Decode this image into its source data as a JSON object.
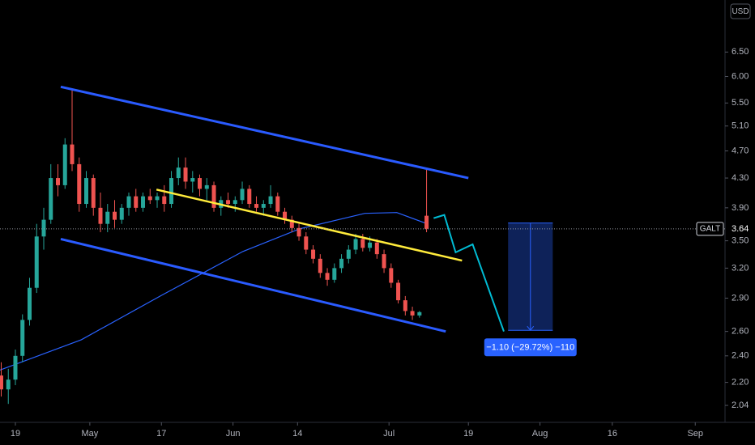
{
  "chart_data": {
    "type": "candlestick",
    "currency": "USD",
    "log_scale": true,
    "up_color": "#26a69a",
    "down_color": "#ef5350",
    "xlim": [
      -2.17,
      100.1
    ],
    "ylim": [
      1.94,
      7.71
    ],
    "xticks": [
      {
        "value": 0,
        "label": "19"
      },
      {
        "value": 10.5,
        "label": "May"
      },
      {
        "value": 20.6,
        "label": "17"
      },
      {
        "value": 30.7,
        "label": "Jun"
      },
      {
        "value": 39.8,
        "label": "14"
      },
      {
        "value": 52.7,
        "label": "Jul"
      },
      {
        "value": 63.9,
        "label": "19"
      },
      {
        "value": 74,
        "label": "Aug"
      },
      {
        "value": 84.2,
        "label": "16"
      },
      {
        "value": 95.9,
        "label": "Sep"
      }
    ],
    "yticks": [
      {
        "value": 6.5,
        "label": "6.50"
      },
      {
        "value": 6.0,
        "label": "6.00"
      },
      {
        "value": 5.5,
        "label": "5.50"
      },
      {
        "value": 5.1,
        "label": "5.10"
      },
      {
        "value": 4.7,
        "label": "4.70"
      },
      {
        "value": 4.3,
        "label": "4.30"
      },
      {
        "value": 3.9,
        "label": "3.90"
      },
      {
        "value": 3.5,
        "label": "3.50"
      },
      {
        "value": 3.2,
        "label": "3.20"
      },
      {
        "value": 2.9,
        "label": "2.90"
      },
      {
        "value": 2.6,
        "label": "2.60"
      },
      {
        "value": 2.4,
        "label": "2.40"
      },
      {
        "value": 2.2,
        "label": "2.20"
      },
      {
        "value": 2.04,
        "label": "2.04"
      }
    ],
    "x": [
      -2,
      -1,
      0,
      1,
      2,
      3,
      4,
      5,
      6,
      7,
      8,
      9,
      10,
      11,
      12,
      13,
      14,
      15,
      16,
      17,
      18,
      19,
      20,
      21,
      22,
      23,
      24,
      25,
      26,
      27,
      28,
      29,
      30,
      31,
      32,
      33,
      34,
      35,
      36,
      37,
      38,
      39,
      40,
      41,
      42,
      43,
      44,
      45,
      46,
      47,
      48,
      49,
      50,
      51,
      52,
      53,
      54,
      55,
      56,
      57,
      58
    ],
    "ohlc": [
      [
        2.25,
        2.35,
        2.1,
        2.15
      ],
      [
        2.15,
        2.3,
        2.05,
        2.22
      ],
      [
        2.22,
        2.45,
        2.18,
        2.4
      ],
      [
        2.4,
        2.75,
        2.35,
        2.7
      ],
      [
        2.7,
        3.1,
        2.65,
        3.0
      ],
      [
        3.0,
        3.7,
        2.95,
        3.55
      ],
      [
        3.55,
        3.9,
        3.4,
        3.75
      ],
      [
        3.75,
        4.5,
        3.7,
        4.3
      ],
      [
        4.3,
        4.5,
        4.05,
        4.2
      ],
      [
        4.2,
        4.9,
        4.15,
        4.8
      ],
      [
        4.8,
        5.75,
        4.4,
        4.5
      ],
      [
        4.5,
        4.6,
        3.85,
        3.95
      ],
      [
        3.95,
        4.4,
        3.9,
        4.3
      ],
      [
        4.3,
        4.35,
        3.8,
        3.9
      ],
      [
        3.9,
        4.1,
        3.6,
        3.7
      ],
      [
        3.7,
        3.95,
        3.6,
        3.85
      ],
      [
        3.85,
        4.0,
        3.65,
        3.75
      ],
      [
        3.75,
        3.95,
        3.7,
        3.9
      ],
      [
        3.9,
        4.1,
        3.8,
        4.05
      ],
      [
        4.05,
        4.15,
        3.85,
        3.9
      ],
      [
        3.9,
        4.1,
        3.85,
        4.05
      ],
      [
        4.05,
        4.15,
        3.95,
        4.0
      ],
      [
        4.0,
        4.1,
        3.9,
        4.05
      ],
      [
        4.05,
        4.2,
        3.85,
        3.95
      ],
      [
        3.95,
        4.4,
        3.9,
        4.3
      ],
      [
        4.3,
        4.6,
        4.2,
        4.45
      ],
      [
        4.45,
        4.6,
        4.15,
        4.25
      ],
      [
        4.25,
        4.4,
        4.1,
        4.3
      ],
      [
        4.3,
        4.35,
        4.05,
        4.15
      ],
      [
        4.15,
        4.3,
        4.0,
        4.2
      ],
      [
        4.2,
        4.25,
        3.85,
        3.9
      ],
      [
        3.9,
        4.05,
        3.8,
        4.0
      ],
      [
        4.0,
        4.1,
        3.9,
        3.95
      ],
      [
        3.95,
        4.05,
        3.85,
        4.0
      ],
      [
        4.0,
        4.25,
        3.95,
        4.15
      ],
      [
        4.15,
        4.2,
        3.9,
        3.95
      ],
      [
        3.95,
        4.05,
        3.85,
        3.9
      ],
      [
        3.9,
        4.0,
        3.8,
        3.95
      ],
      [
        3.95,
        4.2,
        3.9,
        4.05
      ],
      [
        4.05,
        4.1,
        3.8,
        3.85
      ],
      [
        3.85,
        3.9,
        3.7,
        3.75
      ],
      [
        3.75,
        3.8,
        3.6,
        3.65
      ],
      [
        3.65,
        3.7,
        3.5,
        3.55
      ],
      [
        3.55,
        3.6,
        3.35,
        3.4
      ],
      [
        3.4,
        3.45,
        3.25,
        3.3
      ],
      [
        3.3,
        3.35,
        3.1,
        3.15
      ],
      [
        3.15,
        3.2,
        3.02,
        3.08
      ],
      [
        3.08,
        3.25,
        3.05,
        3.2
      ],
      [
        3.2,
        3.35,
        3.15,
        3.3
      ],
      [
        3.3,
        3.45,
        3.25,
        3.4
      ],
      [
        3.4,
        3.58,
        3.35,
        3.52
      ],
      [
        3.52,
        3.58,
        3.38,
        3.42
      ],
      [
        3.42,
        3.55,
        3.38,
        3.48
      ],
      [
        3.48,
        3.52,
        3.3,
        3.35
      ],
      [
        3.35,
        3.4,
        3.15,
        3.2
      ],
      [
        3.2,
        3.25,
        3.0,
        3.05
      ],
      [
        3.05,
        3.08,
        2.85,
        2.88
      ],
      [
        2.88,
        2.92,
        2.74,
        2.78
      ],
      [
        2.78,
        2.82,
        2.7,
        2.74
      ],
      [
        2.74,
        2.78,
        2.72,
        2.77
      ],
      [
        3.8,
        4.42,
        3.6,
        3.64
      ]
    ],
    "moving_average": {
      "color": "#2962ff",
      "x": [
        -2.2,
        9.3,
        20.7,
        32.1,
        40.1,
        49.3,
        53.8,
        57.8
      ],
      "values": [
        2.29,
        2.53,
        2.93,
        3.38,
        3.64,
        3.83,
        3.84,
        3.71
      ]
    },
    "drawings": [
      {
        "color": "#2a5bff",
        "width": 3,
        "x": [
          6.4,
          63.9
        ],
        "values": [
          5.8,
          4.3
        ]
      },
      {
        "color": "#2a5bff",
        "width": 3,
        "x": [
          6.4,
          60.7
        ],
        "values": [
          3.52,
          2.6
        ]
      },
      {
        "color": "#ffeb3b",
        "width": 2.5,
        "x": [
          19.9,
          63
        ],
        "values": [
          4.14,
          3.28
        ]
      },
      {
        "color": "#00bcd4",
        "width": 2,
        "x": [
          59,
          60.5,
          62.1,
          64.5,
          68.9
        ],
        "values": [
          3.77,
          3.81,
          3.37,
          3.46,
          2.6
        ]
      }
    ],
    "measure": {
      "color": "#2962ff",
      "x": [
        69.5,
        75.8
      ],
      "values": [
        3.71,
        2.61
      ],
      "label": "−1.10 (−29.72%) −110"
    },
    "last_price": {
      "symbol": "GALT",
      "value": 3.64
    }
  }
}
